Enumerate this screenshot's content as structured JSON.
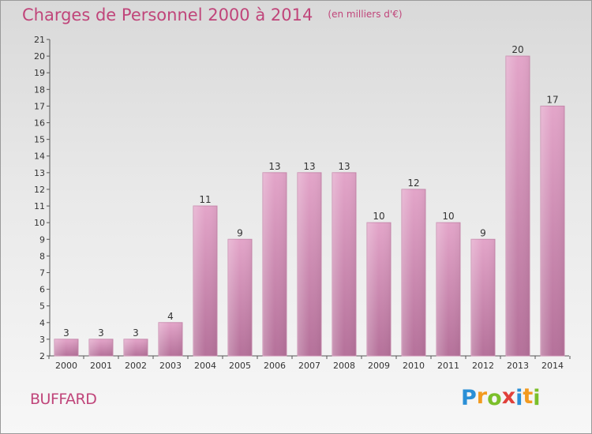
{
  "chart_data": {
    "type": "bar",
    "title": "Charges de Personnel 2000 à 2014",
    "subtitle": "(en milliers d'€)",
    "categories": [
      "2000",
      "2001",
      "2002",
      "2003",
      "2004",
      "2005",
      "2006",
      "2007",
      "2008",
      "2009",
      "2010",
      "2011",
      "2012",
      "2013",
      "2014"
    ],
    "values": [
      3,
      3,
      3,
      4,
      11,
      9,
      13,
      13,
      13,
      10,
      12,
      10,
      9,
      20,
      17
    ],
    "ylim": [
      2,
      21
    ],
    "yticks": [
      2,
      3,
      4,
      5,
      6,
      7,
      8,
      9,
      10,
      11,
      12,
      13,
      14,
      15,
      16,
      17,
      18,
      19,
      20,
      21
    ],
    "grid": false,
    "bar_color": "#d98cb5",
    "bar_color_dark": "#b06a91"
  },
  "commune_name": "BUFFARD",
  "logo": {
    "text": "Proxiti",
    "letter_colors": [
      "#2a8fd6",
      "#f29a1f",
      "#7bbf2a",
      "#e0403a",
      "#2a8fd6",
      "#f29a1f",
      "#7bbf2a"
    ]
  }
}
